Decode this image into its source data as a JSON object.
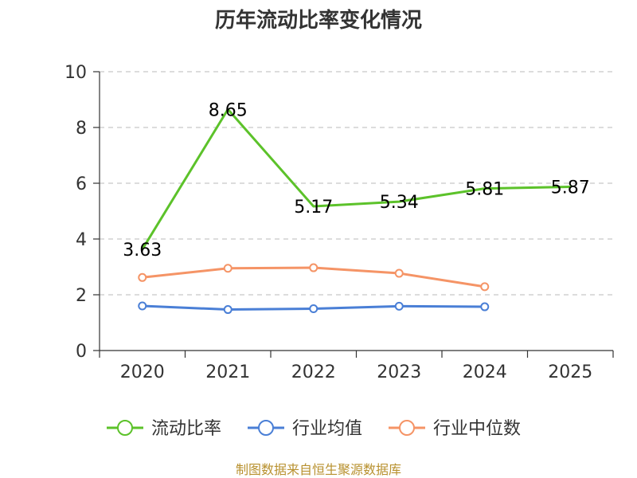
{
  "chart_data": {
    "type": "line",
    "title": "历年流动比率变化情况",
    "xlabel": "",
    "ylabel": "",
    "categories": [
      "2020",
      "2021",
      "2022",
      "2023",
      "2024",
      "2025"
    ],
    "ylim": [
      0,
      10
    ],
    "yticks": [
      0,
      2,
      4,
      6,
      8,
      10
    ],
    "grid": true,
    "legend_position": "bottom",
    "series": [
      {
        "name": "流动比率",
        "color": "#5cc22a",
        "values": [
          3.63,
          8.65,
          5.17,
          5.34,
          5.81,
          5.87
        ],
        "labels": [
          "3.63",
          "8.65",
          "5.17",
          "5.34",
          "5.81",
          "5.87"
        ]
      },
      {
        "name": "行业均值",
        "color": "#4a7fd6",
        "values": [
          1.6,
          1.47,
          1.5,
          1.59,
          1.57,
          null
        ]
      },
      {
        "name": "行业中位数",
        "color": "#f59466",
        "values": [
          2.62,
          2.95,
          2.97,
          2.77,
          2.29,
          null
        ]
      }
    ],
    "source": "制图数据来自恒生聚源数据库"
  }
}
